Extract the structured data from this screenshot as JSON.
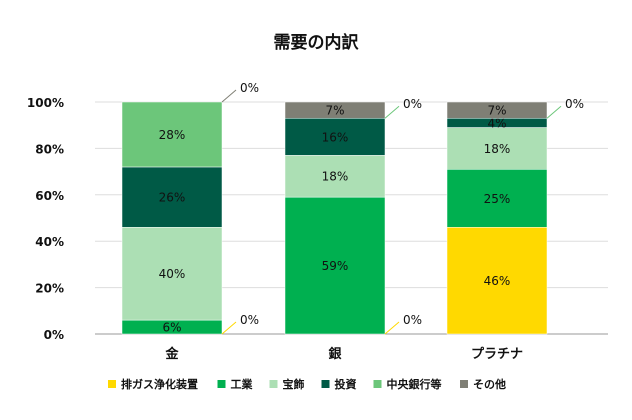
{
  "chart_data": {
    "type": "bar",
    "stacked": true,
    "title": "需要の内訳",
    "xlabel": "",
    "ylabel": "",
    "ylim": [
      0,
      100
    ],
    "yticks": [
      "0%",
      "20%",
      "40%",
      "60%",
      "80%",
      "100%"
    ],
    "grid": true,
    "legend_position": "bottom",
    "categories": [
      "金",
      "銀",
      "プラチナ"
    ],
    "series": [
      {
        "name": "排ガス浄化装置",
        "color": "#ffd900",
        "values": [
          0,
          0,
          46
        ]
      },
      {
        "name": "工業",
        "color": "#00b050",
        "values": [
          6,
          59,
          25
        ]
      },
      {
        "name": "宝飾",
        "color": "#acdfb4",
        "values": [
          40,
          18,
          18
        ]
      },
      {
        "name": "投資",
        "color": "#005a46",
        "values": [
          26,
          16,
          4
        ]
      },
      {
        "name": "中央銀行等",
        "color": "#6cc67a",
        "values": [
          28,
          0,
          0
        ]
      },
      {
        "name": "その他",
        "color": "#7f7f75",
        "values": [
          0,
          7,
          7
        ]
      }
    ]
  }
}
